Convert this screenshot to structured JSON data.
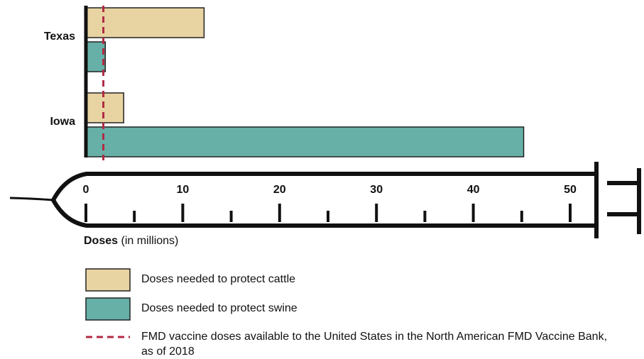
{
  "chart_data": {
    "type": "bar",
    "orientation": "horizontal",
    "categories": [
      "Texas",
      "Iowa"
    ],
    "series": [
      {
        "name": "Doses needed to protect cattle",
        "color": "#e8d4a2",
        "values": [
          12.2,
          3.9
        ]
      },
      {
        "name": "Doses needed to protect swine",
        "color": "#66b0a8",
        "values": [
          2,
          45.2
        ]
      }
    ],
    "reference_line": {
      "name": "FMD vaccine doses available to the United States in the North American FMD Vaccine Bank, as of 2018",
      "value": 1.8,
      "color": "#b22a43"
    },
    "x_label": {
      "bold": "Doses",
      "rest": "(in millions)"
    },
    "xlim": [
      0,
      50
    ],
    "xticks": [
      0,
      10,
      20,
      30,
      40,
      50
    ],
    "minor_xticks": [
      5,
      15,
      25,
      35,
      45
    ]
  }
}
